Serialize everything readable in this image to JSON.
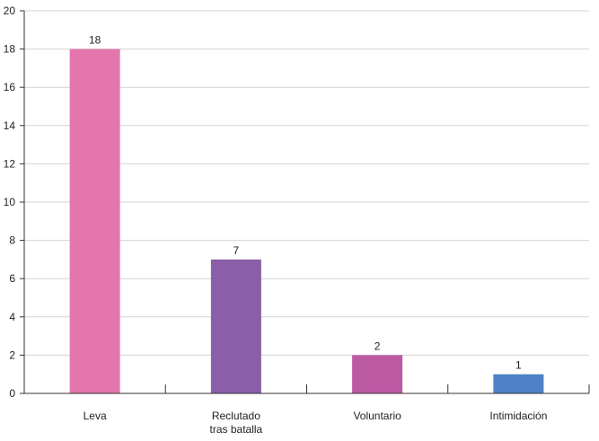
{
  "chart_data": {
    "type": "bar",
    "categories": [
      {
        "lines": [
          "Leva"
        ]
      },
      {
        "lines": [
          "Reclutado",
          "tras batalla"
        ]
      },
      {
        "lines": [
          "Voluntario"
        ]
      },
      {
        "lines": [
          "Intimidación"
        ]
      }
    ],
    "values": [
      18,
      7,
      2,
      1
    ],
    "data_labels": [
      "18",
      "7",
      "2",
      "1"
    ],
    "colors": [
      "#e377ad",
      "#8b5fa8",
      "#bc5aa3",
      "#4f81c7"
    ],
    "ylim": [
      0,
      20
    ],
    "yticks": [
      0,
      2,
      4,
      6,
      8,
      10,
      12,
      14,
      16,
      18,
      20
    ],
    "ytick_labels": [
      "0",
      "2",
      "4",
      "6",
      "8",
      "10",
      "12",
      "14",
      "16",
      "18",
      "20"
    ],
    "grid": true,
    "legend": "none",
    "title": "",
    "xlabel": "",
    "ylabel": ""
  }
}
